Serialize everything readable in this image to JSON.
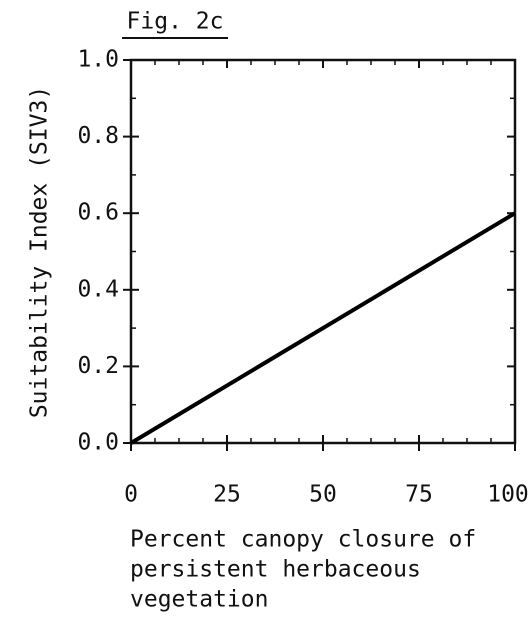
{
  "chart_data": {
    "type": "line",
    "title": "Fig. 2c",
    "x": [
      0,
      100
    ],
    "series": [
      {
        "name": "SIV3",
        "color": "#000000",
        "values": [
          0,
          0.6
        ]
      }
    ],
    "xlim": [
      0,
      100
    ],
    "xticks": [
      0,
      25,
      50,
      75,
      100
    ],
    "ylim": [
      0,
      1
    ],
    "yticks": [
      {
        "value": 0,
        "label": "0.0"
      },
      {
        "value": 0.2,
        "label": "0.2"
      },
      {
        "value": 0.4,
        "label": "0.4"
      },
      {
        "value": 0.6,
        "label": "0.6"
      },
      {
        "value": 0.8,
        "label": "0.8"
      },
      {
        "value": 1,
        "label": "1.0"
      }
    ],
    "ylabel": "Suitability Index (SIV3)",
    "xlabel": [
      "Percent canopy closure of",
      "persistent herbaceous",
      "vegetation"
    ]
  }
}
